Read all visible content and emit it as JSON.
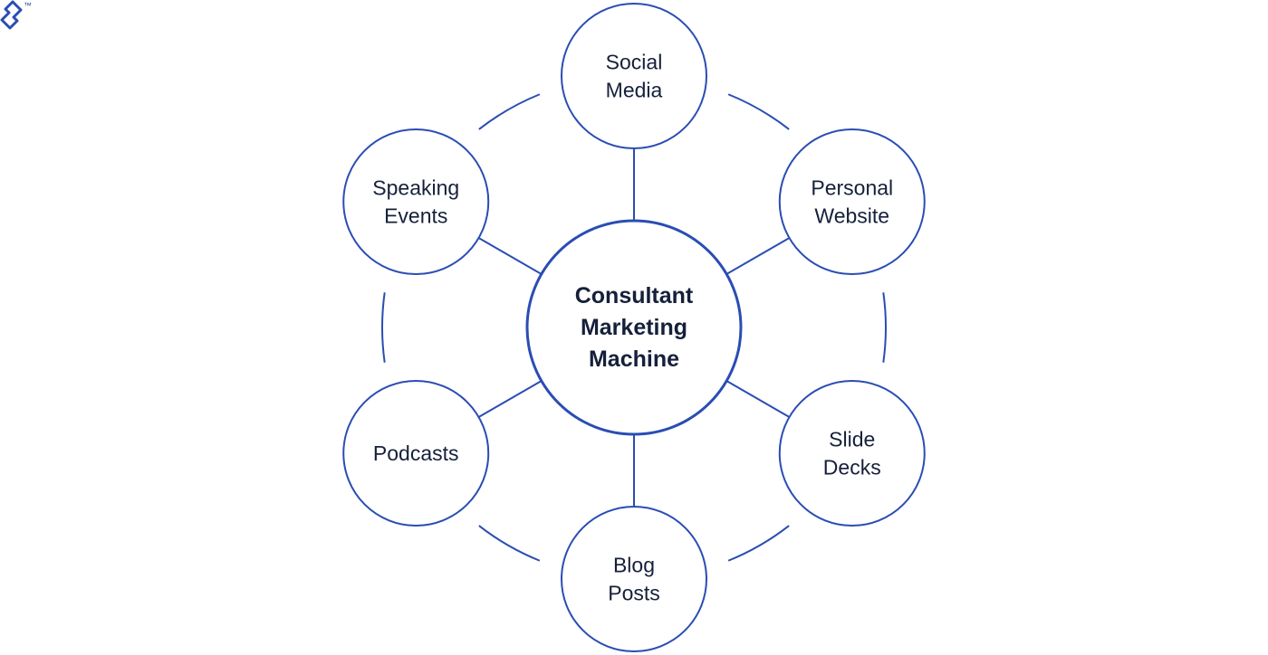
{
  "brand": {
    "logo_icon": "toptal-logo-icon",
    "trademark": "™"
  },
  "colors": {
    "stroke": "#2a4db3",
    "text": "#15203a",
    "background": "#ffffff"
  },
  "center": {
    "lines": [
      "Consultant",
      "Marketing",
      "Machine"
    ]
  },
  "nodes": [
    {
      "id": "social-media",
      "lines": [
        "Social",
        "Media"
      ]
    },
    {
      "id": "personal-website",
      "lines": [
        "Personal",
        "Website"
      ]
    },
    {
      "id": "slide-decks",
      "lines": [
        "Slide",
        "Decks"
      ]
    },
    {
      "id": "blog-posts",
      "lines": [
        "Blog",
        "Posts"
      ]
    },
    {
      "id": "podcasts",
      "lines": [
        "Podcasts"
      ]
    },
    {
      "id": "speaking-events",
      "lines": [
        "Speaking",
        "Events"
      ]
    }
  ]
}
